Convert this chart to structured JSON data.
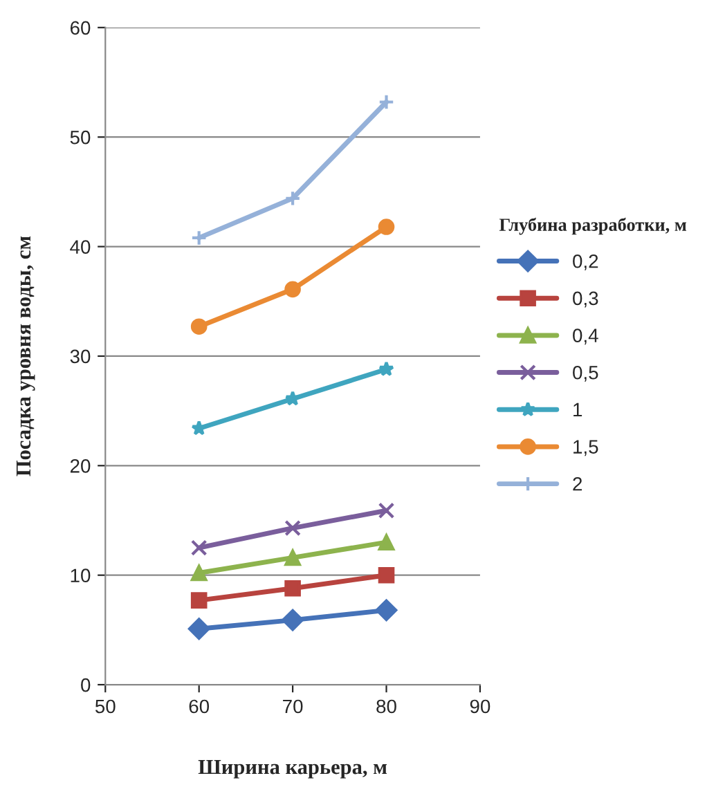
{
  "chart_data": {
    "type": "line",
    "xlabel": "Ширина карьера, м",
    "ylabel": "Посадка уровня воды, см",
    "legend_title": "Глубина разработки, м",
    "x": [
      60,
      70,
      80
    ],
    "xlim": [
      50,
      90
    ],
    "xticks": [
      50,
      60,
      70,
      80,
      90
    ],
    "ylim": [
      0,
      60
    ],
    "yticks": [
      0,
      10,
      20,
      30,
      40,
      50,
      60
    ],
    "grid": "y",
    "legend": "right",
    "line_style": "solid",
    "series": [
      {
        "name": "0,2",
        "color": "#4572b8",
        "marker": "diamond",
        "values": [
          5.1,
          5.9,
          6.8
        ]
      },
      {
        "name": "0,3",
        "color": "#b8433e",
        "marker": "square",
        "values": [
          7.7,
          8.8,
          10.0
        ]
      },
      {
        "name": "0,4",
        "color": "#8db34d",
        "marker": "triangle",
        "values": [
          10.2,
          11.6,
          13.0
        ]
      },
      {
        "name": "0,5",
        "color": "#7a5e9c",
        "marker": "cross",
        "values": [
          12.5,
          14.3,
          15.9
        ]
      },
      {
        "name": "1",
        "color": "#3fa5bf",
        "marker": "star",
        "values": [
          23.4,
          26.1,
          28.8
        ]
      },
      {
        "name": "1,5",
        "color": "#ea8a33",
        "marker": "circle",
        "values": [
          32.7,
          36.1,
          41.8
        ]
      },
      {
        "name": "2",
        "color": "#95b1d9",
        "marker": "plus",
        "values": [
          40.8,
          44.4,
          53.2
        ]
      }
    ]
  }
}
